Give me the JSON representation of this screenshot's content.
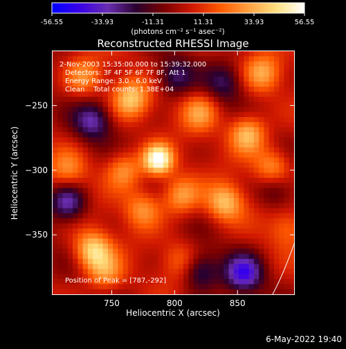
{
  "colorbar": {
    "ticks": [
      "-56.55",
      "-33.93",
      "-11.31",
      "11.31",
      "33.93",
      "56.55"
    ],
    "unit_text": "(photons cm⁻² s⁻¹ asec⁻²)",
    "min": -56.55,
    "max": 56.55,
    "stops": [
      "#0000ff",
      "#3a00e8",
      "#6a2db0",
      "#2a0030",
      "#7a0000",
      "#d01800",
      "#ff5a00",
      "#ffa040",
      "#ffe080",
      "#ffffff"
    ]
  },
  "chart_data": {
    "type": "heatmap",
    "title": "Reconstructed RHESSI Image",
    "xlabel": "Heliocentric X (arcsec)",
    "ylabel": "Heliocentric Y (arcsec)",
    "xlim": [
      703,
      895
    ],
    "ylim": [
      -396,
      -208
    ],
    "xticks": [
      750,
      800,
      850
    ],
    "yticks": [
      -250,
      -300,
      -350
    ],
    "peak": {
      "x": 787,
      "y": -292
    },
    "annotations": [
      "2-Nov-2003 15:35:00.000 to 15:39:32.000",
      "Detectors: 3F 4F 5F 6F 7F 8F, Att 1",
      "Energy Range: 3.0 - 6.0 keV",
      "Clean    Total counts: 1.38E+04"
    ],
    "peak_text": "Position of Peak = [787,-292]",
    "sources": [
      {
        "x": 787,
        "y": -292,
        "value": 56.55
      },
      {
        "x": 735,
        "y": -362,
        "value": 40
      },
      {
        "x": 765,
        "y": -245,
        "value": 35
      },
      {
        "x": 728,
        "y": -228,
        "value": 25
      },
      {
        "x": 820,
        "y": -255,
        "value": 26
      },
      {
        "x": 760,
        "y": -300,
        "value": 28
      },
      {
        "x": 805,
        "y": -320,
        "value": 30
      },
      {
        "x": 775,
        "y": -330,
        "value": 26
      },
      {
        "x": 840,
        "y": -325,
        "value": 34
      },
      {
        "x": 858,
        "y": -272,
        "value": 38
      },
      {
        "x": 878,
        "y": -298,
        "value": 30
      },
      {
        "x": 715,
        "y": -300,
        "value": 22
      },
      {
        "x": 745,
        "y": -380,
        "value": 25
      },
      {
        "x": 805,
        "y": -370,
        "value": 18
      },
      {
        "x": 870,
        "y": -225,
        "value": 28
      },
      {
        "x": 890,
        "y": -345,
        "value": 18
      }
    ],
    "cold_spots": [
      {
        "x": 735,
        "y": -262,
        "value": -30
      },
      {
        "x": 715,
        "y": -325,
        "value": -35
      },
      {
        "x": 855,
        "y": -380,
        "value": -40
      },
      {
        "x": 800,
        "y": -228,
        "value": -25
      },
      {
        "x": 840,
        "y": -232,
        "value": -22
      },
      {
        "x": 820,
        "y": -378,
        "value": -28
      },
      {
        "x": 880,
        "y": -315,
        "value": -20
      }
    ]
  },
  "footer": {
    "timestamp": "6-May-2022 19:40"
  }
}
